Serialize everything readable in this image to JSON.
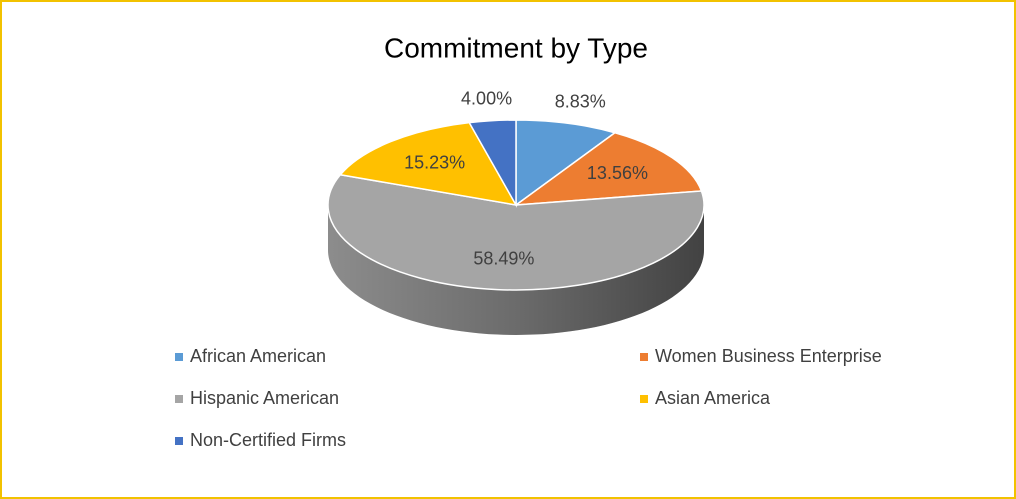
{
  "chart_data": {
    "type": "pie",
    "title": "Commitment by Type",
    "categories": [
      "African American",
      "Women Business Enterprise",
      "Hispanic American",
      "Asian America",
      "Non-Certified Firms"
    ],
    "values": [
      8.83,
      13.56,
      58.49,
      15.23,
      4.0
    ],
    "value_labels": [
      "8.83%",
      "13.56%",
      "58.49%",
      "15.23%",
      "4.00%"
    ],
    "colors": [
      "#5b9bd5",
      "#ed7d31",
      "#a5a5a5",
      "#ffc000",
      "#4472c4"
    ]
  }
}
